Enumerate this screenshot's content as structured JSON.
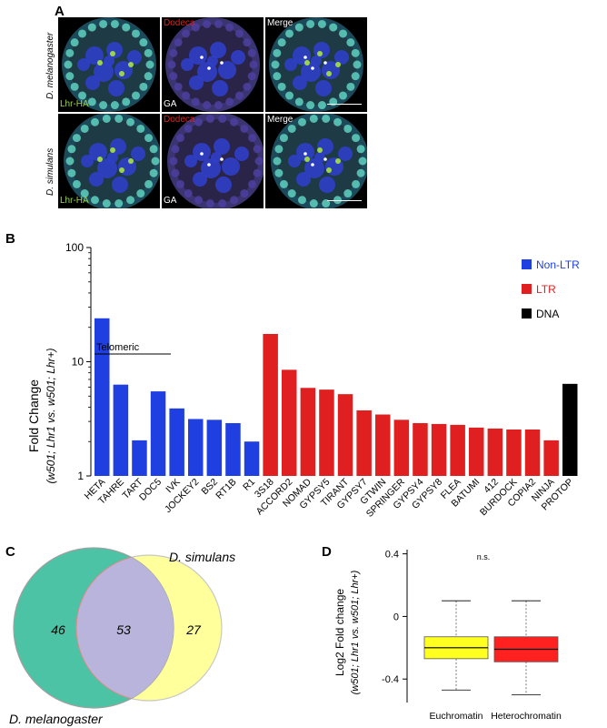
{
  "panel_a": {
    "letter": "A",
    "rows": [
      {
        "species": "D. melanogaster",
        "tiles": [
          "Lhr-HA",
          "Dodeca",
          "GA",
          "Merge"
        ]
      },
      {
        "species": "D. simulans",
        "tiles": [
          "Lhr-HA",
          "Dodeca",
          "GA",
          "Merge"
        ]
      }
    ],
    "colors": {
      "lhr": "#9bd44a",
      "dodeca": "#e0201c",
      "ga": "#ffffff",
      "merge": "#ffffff"
    }
  },
  "panel_b": {
    "letter": "B",
    "telomeric_label": "Telomeric",
    "legend": [
      {
        "label": "Non-LTR",
        "color": "#1f3fe0",
        "text_color": "#1f3fe0"
      },
      {
        "label": "LTR",
        "color": "#e02020",
        "text_color": "#e02020"
      },
      {
        "label": "DNA",
        "color": "#000000",
        "text_color": "#000000"
      }
    ],
    "chart_data": {
      "type": "bar",
      "scale": "log",
      "ylim": [
        1,
        100
      ],
      "yticks": [
        "1",
        "10",
        "100"
      ],
      "ylabel": "Fold Change",
      "ylabel_sub": "(w501; Lhr1 vs. w501; Lhr+)",
      "categories": [
        "HETA",
        "TAHRE",
        "TART",
        "DOC5",
        "IVK",
        "JOCKEY2",
        "BS2",
        "RT1B",
        "R1",
        "3S18",
        "ACCORD2",
        "NOMAD",
        "GYPSY5",
        "TIRANT",
        "GYPSY7",
        "GTWIN",
        "SPRINGER",
        "GYPSY4",
        "GYPSY8",
        "FLEA",
        "BATUMI",
        "412",
        "BURDOCK",
        "COPIA2",
        "NINJA",
        "PROTOP"
      ],
      "values": [
        24,
        6.3,
        2.05,
        5.5,
        3.9,
        3.15,
        3.1,
        2.9,
        2.0,
        17.5,
        8.5,
        5.9,
        5.7,
        5.2,
        3.75,
        3.45,
        3.1,
        2.9,
        2.85,
        2.8,
        2.65,
        2.6,
        2.55,
        2.55,
        2.05,
        6.4
      ],
      "groups": [
        "Non-LTR",
        "Non-LTR",
        "Non-LTR",
        "Non-LTR",
        "Non-LTR",
        "Non-LTR",
        "Non-LTR",
        "Non-LTR",
        "Non-LTR",
        "LTR",
        "LTR",
        "LTR",
        "LTR",
        "LTR",
        "LTR",
        "LTR",
        "LTR",
        "LTR",
        "LTR",
        "LTR",
        "LTR",
        "LTR",
        "LTR",
        "LTR",
        "LTR",
        "DNA"
      ]
    }
  },
  "panel_c": {
    "letter": "C",
    "set_a": {
      "label": "D. melanogaster",
      "color": "#3fbfa0"
    },
    "set_b": {
      "label": "D. simulans",
      "color": "#ffff9a"
    },
    "counts": {
      "only_a": "46",
      "both": "53",
      "only_b": "27"
    }
  },
  "panel_d": {
    "letter": "D",
    "significance": "n.s.",
    "chart_data": {
      "type": "box",
      "ylabel": "Log2 Fold change",
      "ylabel_sub": "(w501; Lhr1 vs. w501; Lhr+)",
      "yticks": [
        "0.4",
        "0",
        "-0.4"
      ],
      "ylim": [
        -0.55,
        0.45
      ],
      "boxes": [
        {
          "name": "Euchromatin",
          "color": "#ffff20",
          "whisker_low": -0.47,
          "q1": -0.27,
          "median": -0.2,
          "q3": -0.13,
          "whisker_high": 0.1
        },
        {
          "name": "Heterochromatin",
          "color": "#ff2020",
          "whisker_low": -0.5,
          "q1": -0.29,
          "median": -0.21,
          "q3": -0.13,
          "whisker_high": 0.1
        }
      ]
    }
  }
}
